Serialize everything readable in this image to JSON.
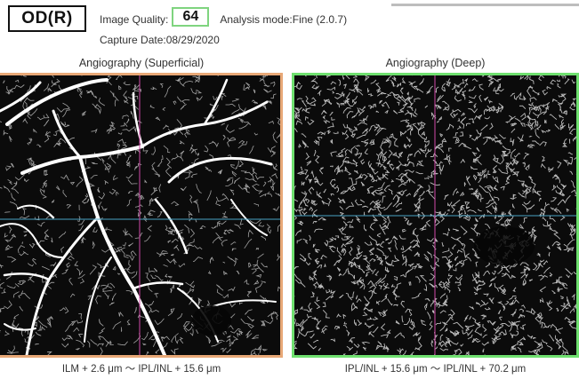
{
  "header": {
    "eye_label": "OD(R)",
    "image_quality_label": "Image Quality:",
    "image_quality_value": "64",
    "analysis_mode": "Analysis mode:Fine  (2.0.7)",
    "capture_date": "Capture Date:08/29/2020"
  },
  "panels": {
    "superficial": {
      "title": "Angiography (Superficial)",
      "caption": "ILM + 2.6 μm 〜 IPL/INL + 15.6 μm",
      "border_color": "#e8a877"
    },
    "deep": {
      "title": "Angiography (Deep)",
      "caption": "IPL/INL + 15.6 μm 〜 IPL/INL + 70.2 μm",
      "border_color": "#6fe06f"
    }
  },
  "colors": {
    "crosshair_horizontal": "#4aa3c4",
    "crosshair_vertical": "#d04aa8",
    "quality_box": "#7fd47f"
  }
}
